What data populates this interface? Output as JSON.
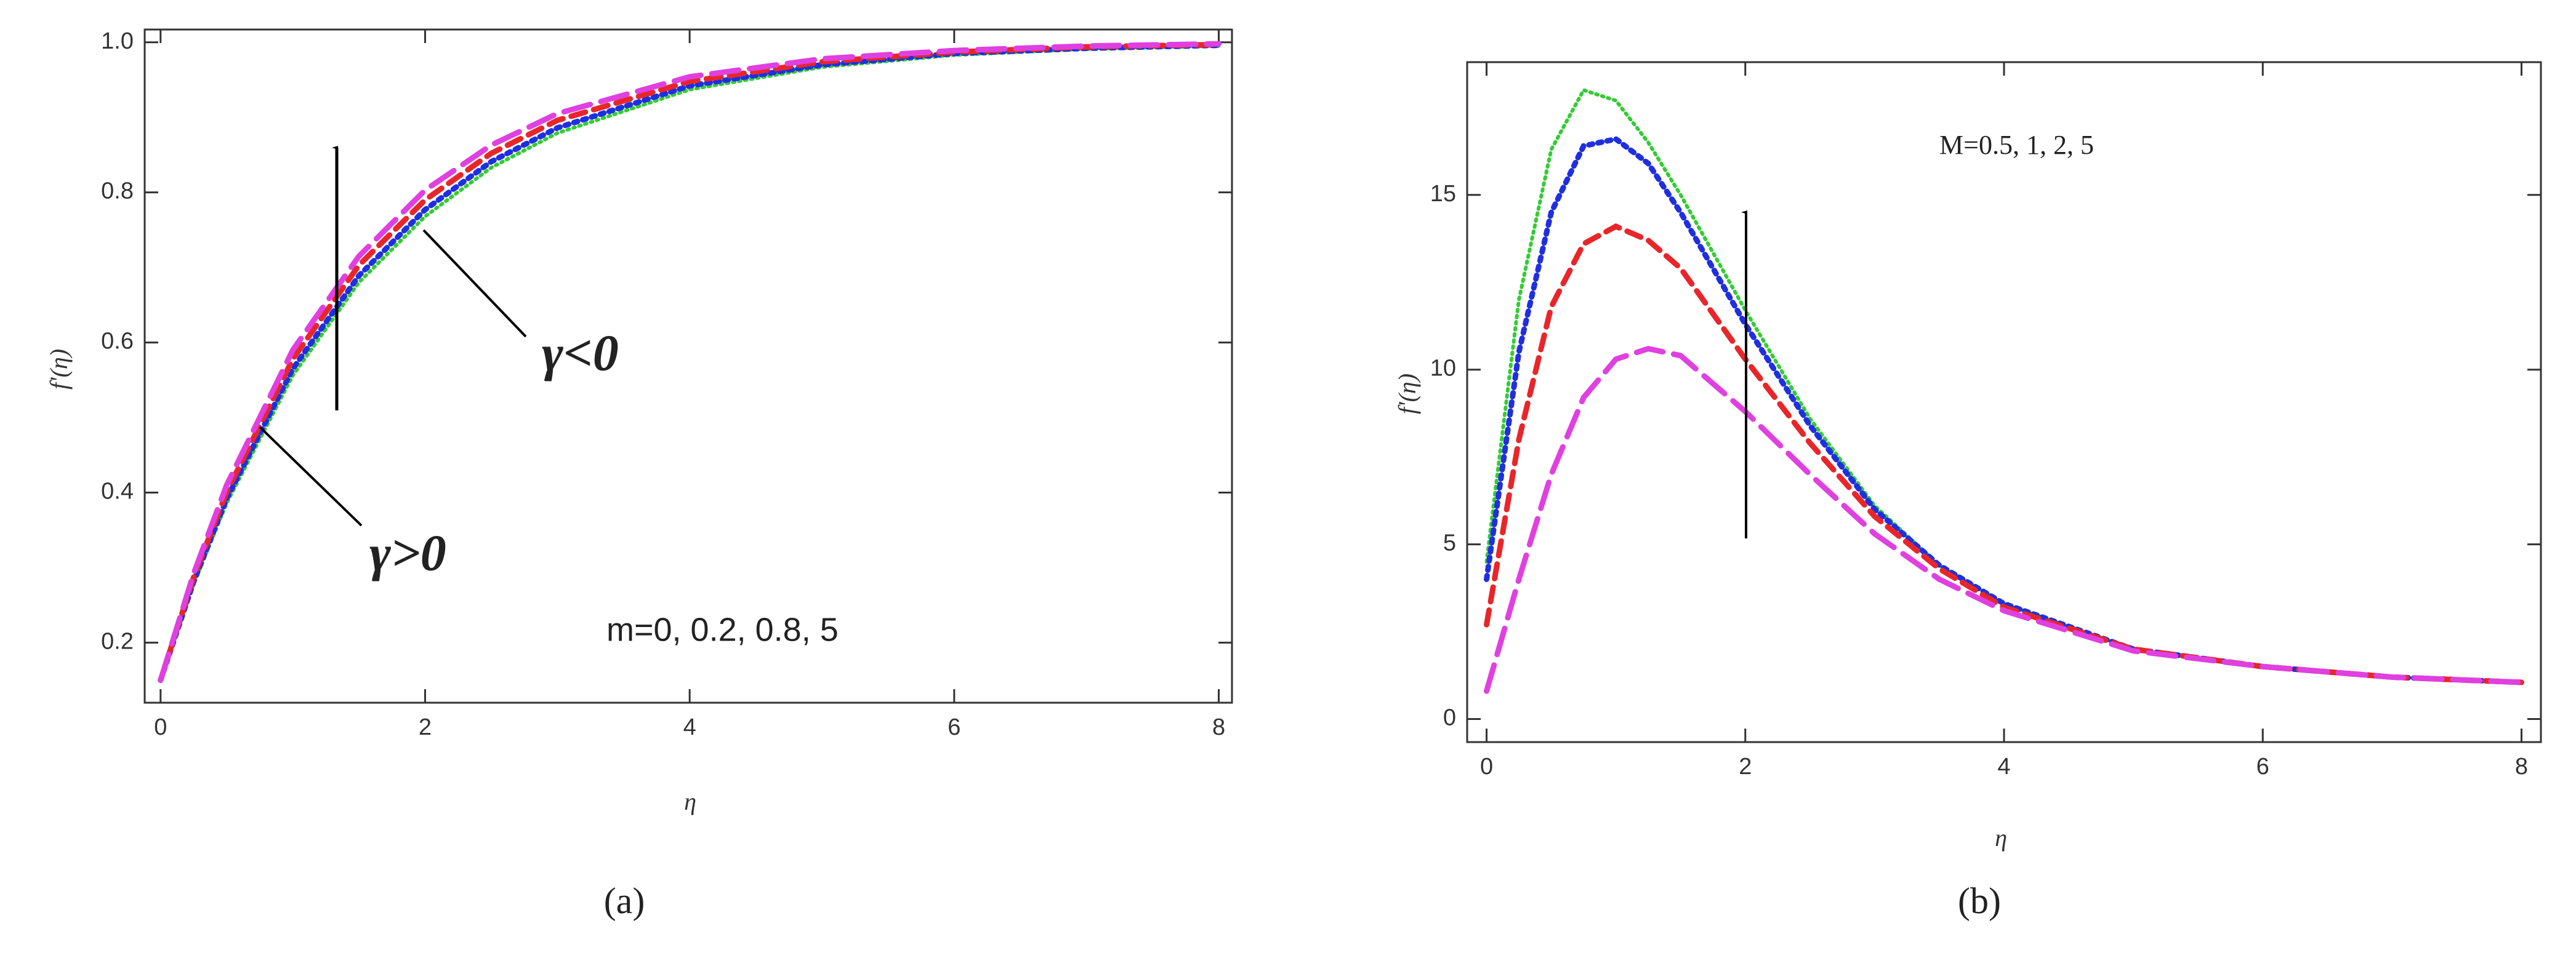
{
  "chart_data": [
    {
      "type": "line",
      "xlabel": "η",
      "ylabel": "f'(η)",
      "caption": "(a)",
      "annotations": [
        "γ<0",
        "γ>0",
        "m=0, 0.2, 0.8, 5"
      ],
      "x": [
        0,
        0.25,
        0.5,
        1,
        1.5,
        2,
        2.5,
        3,
        4,
        5,
        6,
        7,
        8
      ],
      "series": [
        {
          "color": "#33cc33",
          "values": [
            0.15,
            0.278,
            0.386,
            0.556,
            0.68,
            0.768,
            0.833,
            0.879,
            0.937,
            0.967,
            0.983,
            0.991,
            0.995
          ]
        },
        {
          "color": "#1f2fe0",
          "values": [
            0.15,
            0.281,
            0.392,
            0.565,
            0.689,
            0.777,
            0.841,
            0.886,
            0.942,
            0.97,
            0.985,
            0.992,
            0.996
          ]
        },
        {
          "color": "#e8262a",
          "values": [
            0.15,
            0.287,
            0.401,
            0.578,
            0.703,
            0.79,
            0.852,
            0.896,
            0.948,
            0.974,
            0.987,
            0.994,
            0.997
          ]
        },
        {
          "color": "#e040e0",
          "values": [
            0.15,
            0.292,
            0.41,
            0.59,
            0.715,
            0.803,
            0.863,
            0.905,
            0.954,
            0.978,
            0.989,
            0.995,
            0.998
          ]
        }
      ],
      "xlim": [
        -0.12,
        8.1
      ],
      "ylim": [
        0.12,
        1.017
      ],
      "xticks": [
        0,
        2,
        4,
        6,
        8
      ],
      "yticks": [
        0.2,
        0.4,
        0.6,
        0.8,
        {
          "value": 1,
          "label": "1.0"
        }
      ]
    },
    {
      "type": "line",
      "xlabel": "η",
      "ylabel": "f'(η)",
      "caption": "(b)",
      "annotations": [
        "M=0.5, 1, 2, 5"
      ],
      "x": [
        0,
        0.25,
        0.5,
        0.75,
        1,
        1.25,
        1.5,
        2,
        2.5,
        3,
        3.5,
        4,
        5,
        6,
        7,
        8
      ],
      "series": [
        {
          "color": "#33cc33",
          "values": [
            4.5,
            12,
            16.3,
            18,
            17.7,
            16.5,
            15,
            11.7,
            8.6,
            6.1,
            4.4,
            3.3,
            2.0,
            1.5,
            1.2,
            1.05
          ]
        },
        {
          "color": "#1f2fe0",
          "values": [
            4.0,
            10.5,
            14.5,
            16.4,
            16.6,
            15.9,
            14.5,
            11.3,
            8.4,
            6.0,
            4.4,
            3.3,
            2.0,
            1.5,
            1.2,
            1.05
          ]
        },
        {
          "color": "#e8262a",
          "values": [
            2.7,
            8,
            11.8,
            13.6,
            14.1,
            13.7,
            12.9,
            10.3,
            7.9,
            5.8,
            4.3,
            3.2,
            2.0,
            1.5,
            1.2,
            1.05
          ]
        },
        {
          "color": "#e040e0",
          "values": [
            0.8,
            4,
            7,
            9.2,
            10.3,
            10.6,
            10.4,
            8.8,
            7.0,
            5.3,
            4.0,
            3.1,
            1.95,
            1.5,
            1.2,
            1.05
          ]
        }
      ],
      "xlim": [
        -0.15,
        8.15
      ],
      "ylim": [
        -0.66,
        18.8
      ],
      "xticks": [
        0,
        2,
        4,
        6,
        8
      ],
      "yticks": [
        0,
        5,
        10,
        15
      ]
    }
  ]
}
